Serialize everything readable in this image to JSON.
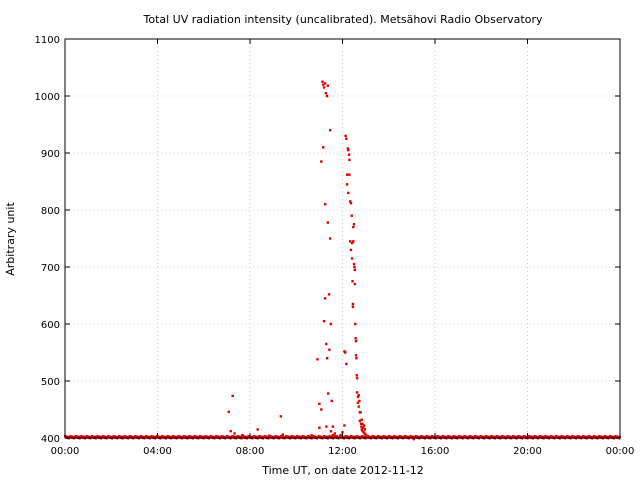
{
  "chart_data": {
    "type": "scatter",
    "title": "Total UV radiation intensity (uncalibrated). Metsähovi Radio Observatory",
    "xlabel": "Time UT, on date 2012-11-12",
    "ylabel": "Arbitrary unit",
    "xlim": [
      "00:00",
      "24:00"
    ],
    "ylim": [
      400,
      1100
    ],
    "xticks": [
      "00:00",
      "04:00",
      "08:00",
      "12:00",
      "16:00",
      "20:00",
      "00:00"
    ],
    "yticks": [
      400,
      500,
      600,
      700,
      800,
      900,
      1000,
      1100
    ],
    "grid": true,
    "color": "#e00000",
    "baseline": {
      "from": "00:00",
      "to": "24:00",
      "value": 401
    },
    "points": [
      {
        "x": "07:05",
        "y": 446
      },
      {
        "x": "07:10",
        "y": 412
      },
      {
        "x": "07:15",
        "y": 474
      },
      {
        "x": "07:20",
        "y": 408
      },
      {
        "x": "07:40",
        "y": 405
      },
      {
        "x": "08:20",
        "y": 415
      },
      {
        "x": "08:50",
        "y": 404
      },
      {
        "x": "09:20",
        "y": 438
      },
      {
        "x": "09:25",
        "y": 406
      },
      {
        "x": "10:40",
        "y": 405
      },
      {
        "x": "10:55",
        "y": 538
      },
      {
        "x": "11:00",
        "y": 418
      },
      {
        "x": "11:00",
        "y": 460
      },
      {
        "x": "11:05",
        "y": 450
      },
      {
        "x": "11:05",
        "y": 885
      },
      {
        "x": "11:08",
        "y": 1025
      },
      {
        "x": "11:10",
        "y": 1020
      },
      {
        "x": "11:10",
        "y": 910
      },
      {
        "x": "11:12",
        "y": 1015
      },
      {
        "x": "11:12",
        "y": 605
      },
      {
        "x": "11:15",
        "y": 1022
      },
      {
        "x": "11:15",
        "y": 810
      },
      {
        "x": "11:15",
        "y": 645
      },
      {
        "x": "11:17",
        "y": 1005
      },
      {
        "x": "11:18",
        "y": 420
      },
      {
        "x": "11:18",
        "y": 565
      },
      {
        "x": "11:20",
        "y": 1000
      },
      {
        "x": "11:20",
        "y": 540
      },
      {
        "x": "11:22",
        "y": 1018
      },
      {
        "x": "11:22",
        "y": 778
      },
      {
        "x": "11:23",
        "y": 478
      },
      {
        "x": "11:25",
        "y": 652
      },
      {
        "x": "11:26",
        "y": 555
      },
      {
        "x": "11:28",
        "y": 750
      },
      {
        "x": "11:28",
        "y": 940
      },
      {
        "x": "11:30",
        "y": 600
      },
      {
        "x": "11:30",
        "y": 412
      },
      {
        "x": "11:32",
        "y": 465
      },
      {
        "x": "11:35",
        "y": 420
      },
      {
        "x": "11:35",
        "y": 405
      },
      {
        "x": "11:40",
        "y": 408
      },
      {
        "x": "11:45",
        "y": 403
      },
      {
        "x": "11:55",
        "y": 405
      },
      {
        "x": "12:00",
        "y": 410
      },
      {
        "x": "12:05",
        "y": 422
      },
      {
        "x": "12:05",
        "y": 552
      },
      {
        "x": "12:07",
        "y": 550
      },
      {
        "x": "12:08",
        "y": 930
      },
      {
        "x": "12:10",
        "y": 925
      },
      {
        "x": "12:10",
        "y": 530
      },
      {
        "x": "12:12",
        "y": 862
      },
      {
        "x": "12:12",
        "y": 845
      },
      {
        "x": "12:14",
        "y": 908
      },
      {
        "x": "12:15",
        "y": 905
      },
      {
        "x": "12:15",
        "y": 830
      },
      {
        "x": "12:17",
        "y": 897
      },
      {
        "x": "12:18",
        "y": 888
      },
      {
        "x": "12:18",
        "y": 862
      },
      {
        "x": "12:20",
        "y": 815
      },
      {
        "x": "12:20",
        "y": 745
      },
      {
        "x": "12:22",
        "y": 812
      },
      {
        "x": "12:22",
        "y": 730
      },
      {
        "x": "12:24",
        "y": 790
      },
      {
        "x": "12:25",
        "y": 742
      },
      {
        "x": "12:25",
        "y": 715
      },
      {
        "x": "12:26",
        "y": 675
      },
      {
        "x": "12:27",
        "y": 635
      },
      {
        "x": "12:27",
        "y": 630
      },
      {
        "x": "12:28",
        "y": 770
      },
      {
        "x": "12:28",
        "y": 745
      },
      {
        "x": "12:30",
        "y": 775
      },
      {
        "x": "12:30",
        "y": 705
      },
      {
        "x": "12:31",
        "y": 700
      },
      {
        "x": "12:32",
        "y": 695
      },
      {
        "x": "12:32",
        "y": 670
      },
      {
        "x": "12:33",
        "y": 600
      },
      {
        "x": "12:34",
        "y": 575
      },
      {
        "x": "12:35",
        "y": 570
      },
      {
        "x": "12:35",
        "y": 545
      },
      {
        "x": "12:36",
        "y": 540
      },
      {
        "x": "12:37",
        "y": 510
      },
      {
        "x": "12:38",
        "y": 505
      },
      {
        "x": "12:38",
        "y": 480
      },
      {
        "x": "12:40",
        "y": 472
      },
      {
        "x": "12:40",
        "y": 462
      },
      {
        "x": "12:42",
        "y": 475
      },
      {
        "x": "12:42",
        "y": 455
      },
      {
        "x": "12:44",
        "y": 465
      },
      {
        "x": "12:45",
        "y": 445
      },
      {
        "x": "12:45",
        "y": 430
      },
      {
        "x": "12:47",
        "y": 445
      },
      {
        "x": "12:48",
        "y": 425
      },
      {
        "x": "12:49",
        "y": 420
      },
      {
        "x": "12:50",
        "y": 432
      },
      {
        "x": "12:50",
        "y": 415
      },
      {
        "x": "12:52",
        "y": 412
      },
      {
        "x": "12:52",
        "y": 425
      },
      {
        "x": "12:54",
        "y": 418
      },
      {
        "x": "12:55",
        "y": 410
      },
      {
        "x": "12:56",
        "y": 422
      },
      {
        "x": "12:57",
        "y": 408
      },
      {
        "x": "12:58",
        "y": 415
      },
      {
        "x": "13:00",
        "y": 406
      },
      {
        "x": "13:05",
        "y": 404
      },
      {
        "x": "15:05",
        "y": 398
      }
    ]
  }
}
